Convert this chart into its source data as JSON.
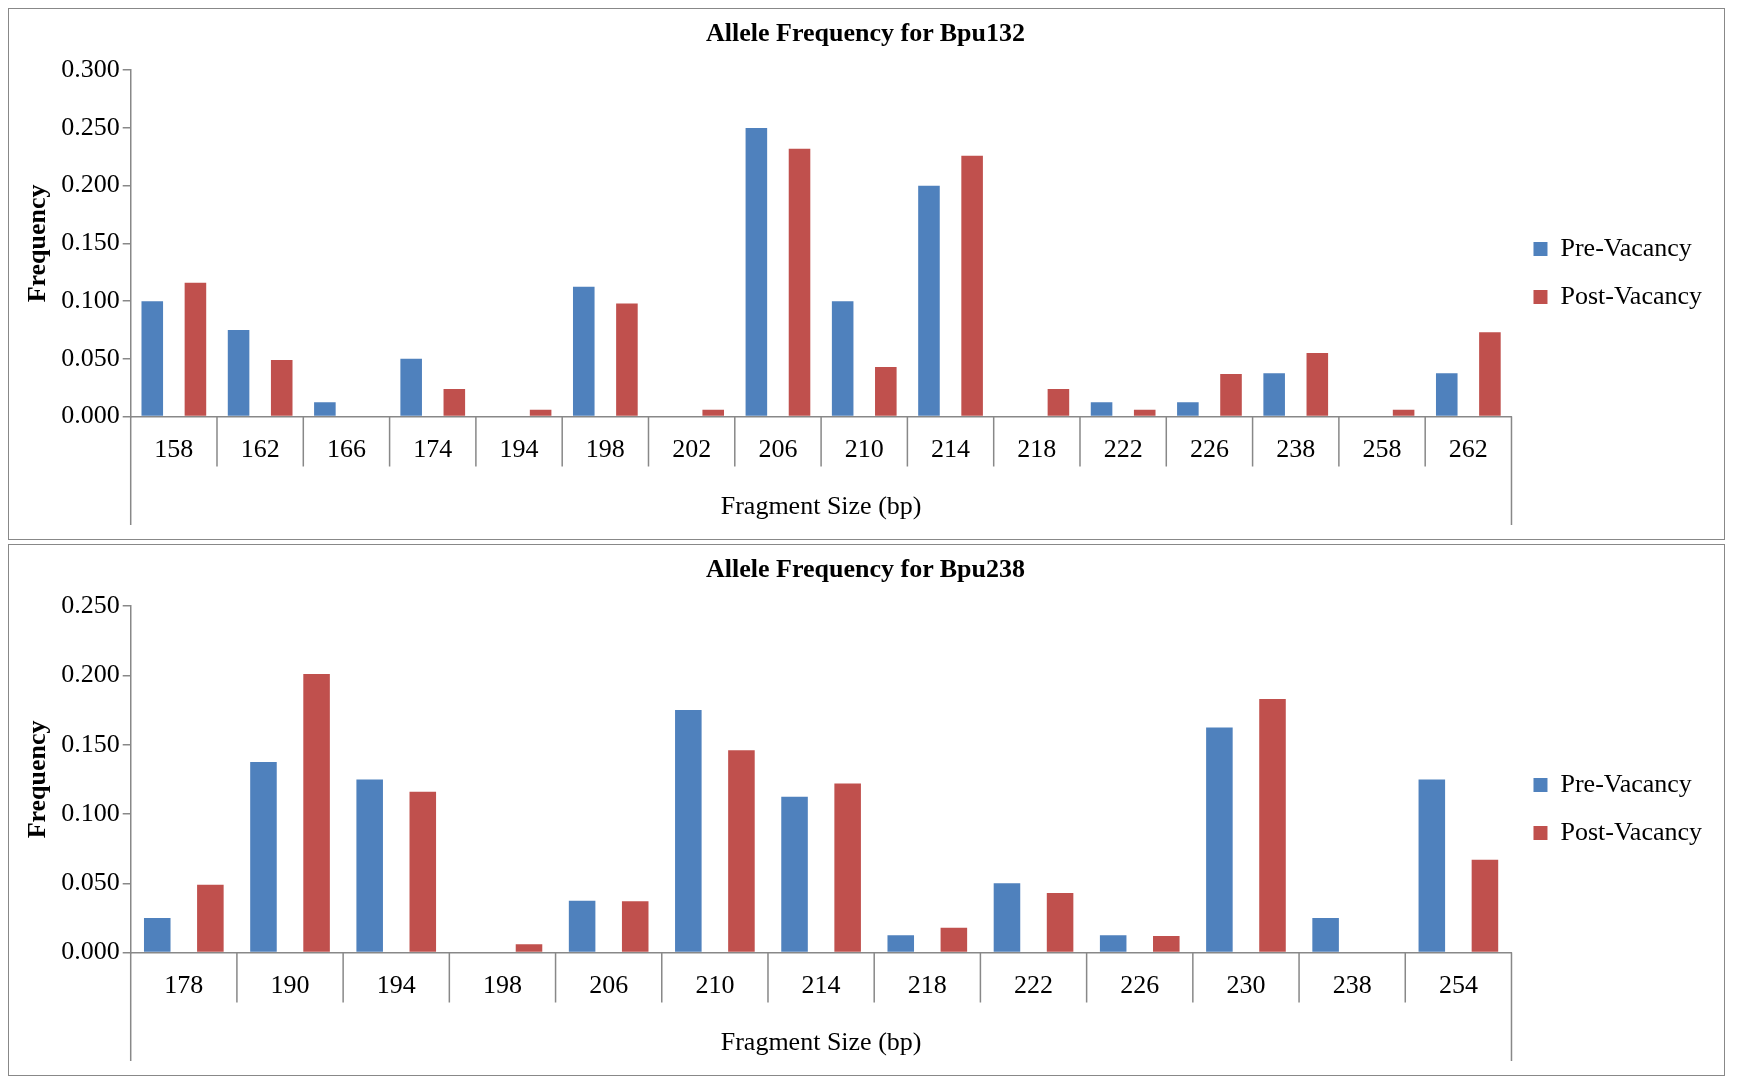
{
  "chart_data": [
    {
      "type": "bar",
      "title": "Allele Frequency for Bpu132",
      "xlabel": "Fragment Size (bp)",
      "ylabel": "Frequency",
      "categories": [
        "158",
        "162",
        "166",
        "174",
        "194",
        "198",
        "202",
        "206",
        "210",
        "214",
        "218",
        "222",
        "226",
        "238",
        "258",
        "262"
      ],
      "series": [
        {
          "name": "Pre-Vacancy",
          "color": "#4f81bd",
          "values": [
            0.1,
            0.075,
            0.0125,
            0.05,
            0,
            0.1125,
            0,
            0.25,
            0.1,
            0.2,
            0,
            0.0125,
            0.0125,
            0.0375,
            0,
            0.0375
          ]
        },
        {
          "name": "Post-Vacancy",
          "color": "#c0504d",
          "values": [
            0.116,
            0.049,
            0,
            0.024,
            0.006,
            0.098,
            0.006,
            0.232,
            0.043,
            0.226,
            0.024,
            0.006,
            0.037,
            0.055,
            0.006,
            0.073
          ]
        }
      ],
      "ylim": [
        0,
        0.3
      ],
      "yticks": [
        {
          "value": 0,
          "label": "0.000"
        },
        {
          "value": 0.05,
          "label": "0.050"
        },
        {
          "value": 0.1,
          "label": "0.100"
        },
        {
          "value": 0.15,
          "label": "0.150"
        },
        {
          "value": 0.2,
          "label": "0.200"
        },
        {
          "value": 0.25,
          "label": "0.250"
        },
        {
          "value": 0.3,
          "label": "0.300"
        }
      ],
      "grid": false,
      "legend": "right"
    },
    {
      "type": "bar",
      "title": "Allele Frequency for Bpu238",
      "xlabel": "Fragment Size (bp)",
      "ylabel": "Frequency",
      "categories": [
        "178",
        "190",
        "194",
        "198",
        "206",
        "210",
        "214",
        "218",
        "222",
        "226",
        "230",
        "238",
        "254"
      ],
      "series": [
        {
          "name": "Pre-Vacancy",
          "color": "#4f81bd",
          "values": [
            0.025,
            0.1375,
            0.125,
            0,
            0.0375,
            0.175,
            0.1125,
            0.0125,
            0.05,
            0.0125,
            0.1625,
            0.025,
            0.125
          ]
        },
        {
          "name": "Post-Vacancy",
          "color": "#c0504d",
          "values": [
            0.049,
            0.201,
            0.116,
            0.006,
            0.037,
            0.146,
            0.122,
            0.018,
            0.043,
            0.012,
            0.183,
            0,
            0.067
          ]
        }
      ],
      "ylim": [
        0,
        0.25
      ],
      "yticks": [
        {
          "value": 0,
          "label": "0.000"
        },
        {
          "value": 0.05,
          "label": "0.050"
        },
        {
          "value": 0.1,
          "label": "0.100"
        },
        {
          "value": 0.15,
          "label": "0.150"
        },
        {
          "value": 0.2,
          "label": "0.200"
        },
        {
          "value": 0.25,
          "label": "0.250"
        }
      ],
      "grid": false,
      "legend": "right"
    }
  ]
}
